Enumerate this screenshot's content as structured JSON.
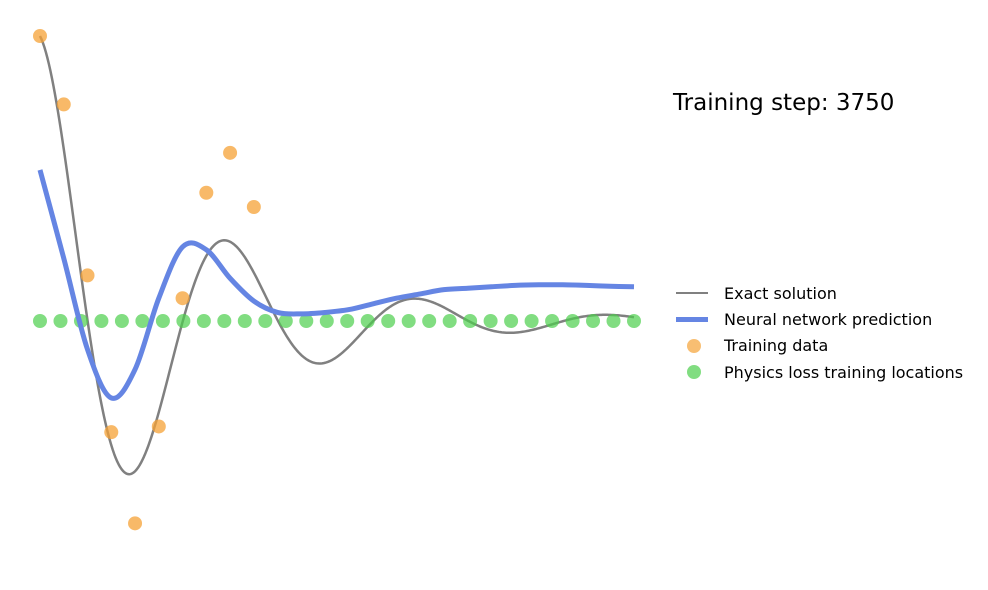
{
  "title": "Training step: 3750",
  "colors": {
    "exact": "#808080",
    "prediction": "#6585e3",
    "training": "#f5a236",
    "physics": "#4ccf4c"
  },
  "legend": [
    {
      "key": "exact",
      "label": "Exact solution",
      "kind": "line"
    },
    {
      "key": "prediction",
      "label": "Neural network prediction",
      "kind": "thick-line"
    },
    {
      "key": "training",
      "label": "Training data",
      "kind": "dot"
    },
    {
      "key": "physics",
      "label": "Physics loss training locations",
      "kind": "dot"
    }
  ],
  "chart_data": {
    "type": "line",
    "title": "Training step: 3750",
    "xlim": [
      0,
      1
    ],
    "ylim": [
      -1.2,
      1.2
    ],
    "axes_visible": false,
    "grid": false,
    "legend_position": "right",
    "series": [
      {
        "name": "Exact solution",
        "model": "damped-oscillator",
        "x": [
          0,
          1
        ],
        "amplitude": 1,
        "damping": 4,
        "omega": 19.6
      },
      {
        "name": "Neural network prediction",
        "x": [
          0.0,
          0.04,
          0.08,
          0.12,
          0.16,
          0.2,
          0.24,
          0.28,
          0.32,
          0.36,
          0.4,
          0.44,
          0.48,
          0.52,
          0.56,
          0.6,
          0.64,
          0.68,
          0.72,
          0.76,
          0.8,
          0.84,
          0.88,
          0.92,
          0.96,
          1.0
        ],
        "y": [
          0.53,
          0.22,
          -0.1,
          -0.27,
          -0.17,
          0.08,
          0.26,
          0.25,
          0.15,
          0.07,
          0.03,
          0.025,
          0.03,
          0.04,
          0.06,
          0.08,
          0.095,
          0.11,
          0.115,
          0.12,
          0.125,
          0.127,
          0.127,
          0.125,
          0.122,
          0.12
        ]
      },
      {
        "name": "Training data",
        "type": "scatter",
        "x": [
          0.0,
          0.04,
          0.08,
          0.12,
          0.16,
          0.2,
          0.24,
          0.28,
          0.32,
          0.36
        ],
        "y": [
          1.0,
          0.76,
          0.16,
          -0.39,
          -0.71,
          -0.37,
          0.08,
          0.45,
          0.59,
          0.4
        ]
      },
      {
        "name": "Physics loss training locations",
        "type": "scatter",
        "x": [
          0.0,
          0.0345,
          0.069,
          0.1034,
          0.1379,
          0.1724,
          0.2069,
          0.2414,
          0.2759,
          0.3103,
          0.3448,
          0.3793,
          0.4138,
          0.4483,
          0.4828,
          0.5172,
          0.5517,
          0.5862,
          0.6207,
          0.6552,
          0.6897,
          0.7241,
          0.7586,
          0.7931,
          0.8276,
          0.8621,
          0.8966,
          0.931,
          0.9655,
          1.0
        ],
        "y": [
          0,
          0,
          0,
          0,
          0,
          0,
          0,
          0,
          0,
          0,
          0,
          0,
          0,
          0,
          0,
          0,
          0,
          0,
          0,
          0,
          0,
          0,
          0,
          0,
          0,
          0,
          0,
          0,
          0,
          0
        ]
      }
    ]
  }
}
